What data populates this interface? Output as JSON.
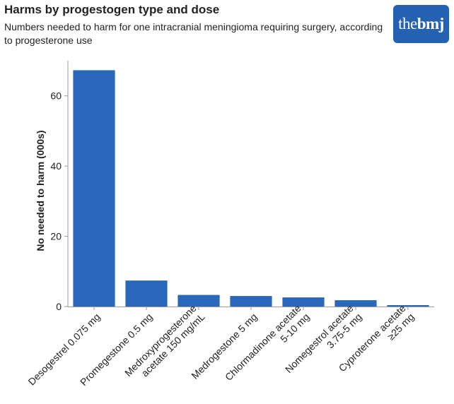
{
  "header": {
    "title": "Harms by progestogen type and dose",
    "subtitle": "Numbers needed to harm for one intracranial meningioma requiring surgery, according to progesterone use"
  },
  "logo": {
    "prefix": "the",
    "suffix": "bmj"
  },
  "colors": {
    "bar": "#2867ba",
    "axis": "#999999",
    "logo_bg": "#2461b2"
  },
  "chart_data": {
    "type": "bar",
    "title": "Harms by progestogen type and dose",
    "subtitle": "Numbers needed to harm for one intracranial meningioma requiring surgery, according to progesterone use",
    "xlabel": "",
    "ylabel": "No needed to harm (000s)",
    "ylim": [
      0,
      70
    ],
    "yticks": [
      0,
      20,
      40,
      60
    ],
    "grid": false,
    "categories": [
      [
        "Desogestrel 0.075 mg"
      ],
      [
        "Promegestone 0.5 mg"
      ],
      [
        "Medroxyprogesterone",
        "acetate 150 mg/mL"
      ],
      [
        "Medrogestone 5 mg"
      ],
      [
        "Chlormadinone acetate",
        "5-10 mg"
      ],
      [
        "Nomegestrol acetate",
        "3.75-5 mg"
      ],
      [
        "Cyproterone acetate",
        "≥25 mg"
      ]
    ],
    "values": [
      67.3,
      7.4,
      3.3,
      3.0,
      2.6,
      1.8,
      0.4
    ]
  }
}
